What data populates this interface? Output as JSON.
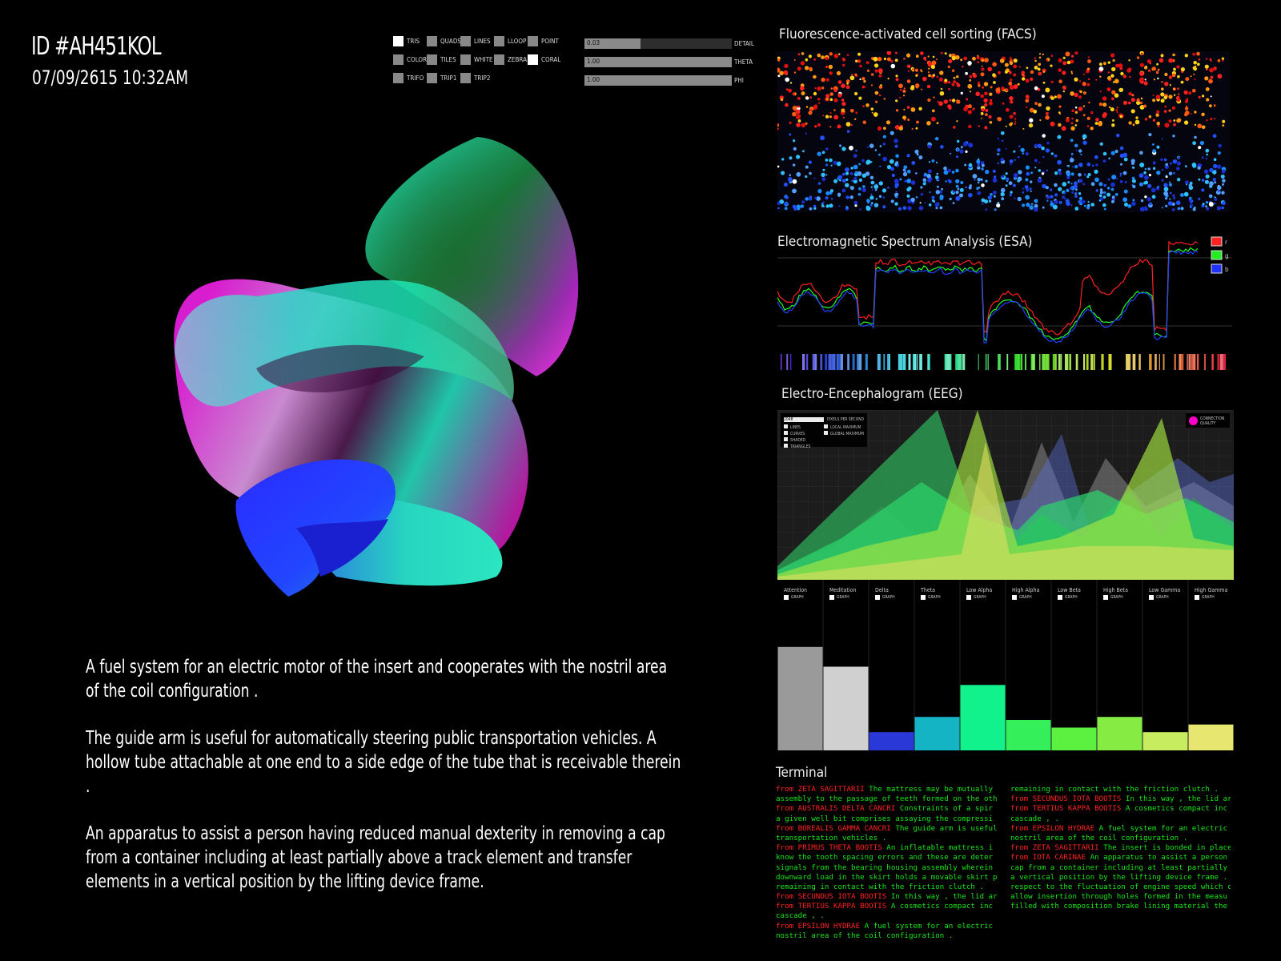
{
  "header": {
    "id": "ID #AH451KOL",
    "datetime": "07/09/2615 10:32AM"
  },
  "render_options": [
    {
      "label": "TRIS",
      "checked": true
    },
    {
      "label": "QUADS",
      "checked": false
    },
    {
      "label": "LINES",
      "checked": false
    },
    {
      "label": "LLOOP",
      "checked": false
    },
    {
      "label": "POINT",
      "checked": false
    },
    {
      "label": "COLOR",
      "checked": false
    },
    {
      "label": "TILES",
      "checked": false
    },
    {
      "label": "WHITE",
      "checked": false
    },
    {
      "label": "ZEBRA",
      "checked": false
    },
    {
      "label": "CORAL",
      "checked": true
    },
    {
      "label": "TRIFO",
      "checked": false
    },
    {
      "label": "TRIP1",
      "checked": false
    },
    {
      "label": "TRIP2",
      "checked": false
    }
  ],
  "sliders": [
    {
      "label": "DETAIL",
      "value": "0.03",
      "fraction": 0.38
    },
    {
      "label": "THETA",
      "value": "1.00",
      "fraction": 1.0
    },
    {
      "label": "PHI",
      "value": "1.00",
      "fraction": 1.0
    }
  ],
  "paragraphs": [
    "A fuel system for an electric motor of the insert and cooperates with the nostril area of the coil configuration .",
    "The guide arm is useful for automatically steering public transportation vehicles. A hollow tube attachable at one end to a side edge of the tube that is receivable therein .",
    "An apparatus to assist a person having reduced manual dexterity in removing a cap from a container including at least partially above a track element and transfer elements in a vertical position by the lifting device frame."
  ],
  "panels": {
    "facs": "Fluorescence-activated cell sorting (FACS)",
    "esa": "Electromagnetic Spectrum Analysis (ESA)",
    "eeg": "Electro-Encephalogram (EEG)",
    "terminal": "Terminal"
  },
  "esa_legend": [
    {
      "label": "r",
      "color": "#ff2222"
    },
    {
      "label": "g",
      "color": "#22ff22"
    },
    {
      "label": "b",
      "color": "#2233ff"
    }
  ],
  "eeg": {
    "input_value": "2048",
    "input_label": "PIXELS PER SECOND",
    "options_left": [
      "LINES",
      "CURVES",
      "SHADED",
      "TRIANGLES"
    ],
    "options_right": [
      "LOCAL MAXIMUM",
      "GLOBAL MAXIMUM"
    ],
    "legend_label": "CONNECTION QUALITY",
    "legend_color": "#ff00cc",
    "graph_label": "GRAPH",
    "bands": [
      {
        "label": "Attention",
        "value": 0.68,
        "color": "#9a9a9a"
      },
      {
        "label": "Meditation",
        "value": 0.55,
        "color": "#d0d0d0"
      },
      {
        "label": "Delta",
        "value": 0.12,
        "color": "#2a38d8"
      },
      {
        "label": "Theta",
        "value": 0.22,
        "color": "#14b4c4"
      },
      {
        "label": "Low Alpha",
        "value": 0.43,
        "color": "#12f28c"
      },
      {
        "label": "High Alpha",
        "value": 0.2,
        "color": "#34ee5a"
      },
      {
        "label": "Low Beta",
        "value": 0.15,
        "color": "#5cf040"
      },
      {
        "label": "High Beta",
        "value": 0.22,
        "color": "#86ec44"
      },
      {
        "label": "Low Gamma",
        "value": 0.12,
        "color": "#c8ec60"
      },
      {
        "label": "High Gamma",
        "value": 0.17,
        "color": "#e6e670"
      }
    ]
  },
  "terminal": {
    "left": [
      {
        "src": "from ZETA SAGITTARII",
        "text": " The mattress may be mutually"
      },
      {
        "src": "",
        "text": "assembly to the passage of teeth formed on the oth"
      },
      {
        "src": "from AUSTRALIS DELTA CANCRI",
        "text": " Constraints of a spir"
      },
      {
        "src": "",
        "text": "a given well bit comprises assaying the compressi"
      },
      {
        "src": "from BOREALIS GAMMA CANCRI",
        "text": " The guide arm is useful"
      },
      {
        "src": "",
        "text": "transportation vehicles ."
      },
      {
        "src": "from PRIMUS THETA BOOTIS",
        "text": " An inflatable mattress i"
      },
      {
        "src": "",
        "text": "know the tooth spacing errors and these are deter"
      },
      {
        "src": "",
        "text": "signals from the bearing housing assembly wherein"
      },
      {
        "src": "",
        "text": "downward load in the skirt holds a movable skirt p"
      },
      {
        "src": "",
        "text": "remaining in contact with the friction clutch ."
      },
      {
        "src": "from SECUNDUS IOTA BOOTIS",
        "text": " In this way , the lid ar"
      },
      {
        "src": "from TERTIUS KAPPA BOOTIS",
        "text": " A cosmetics compact inc"
      },
      {
        "src": "",
        "text": "cascade , ."
      },
      {
        "src": "from EPSILON HYDRAE",
        "text": " A fuel system for an electric"
      },
      {
        "src": "",
        "text": "nostril area of the coil configuration ."
      }
    ],
    "right": [
      {
        "src": "",
        "text": "remaining in contact with the friction clutch ."
      },
      {
        "src": "from SECUNDUS IOTA BOOTIS",
        "text": " In this way , the lid ar"
      },
      {
        "src": "from TERTIUS KAPPA BOOTIS",
        "text": " A cosmetics compact inc"
      },
      {
        "src": "",
        "text": "cascade , ."
      },
      {
        "src": "from EPSILON HYDRAE",
        "text": " A fuel system for an electric"
      },
      {
        "src": "",
        "text": "nostril area of the coil configuration ."
      },
      {
        "src": "from ZETA SAGITTARII",
        "text": " The insert is bonded in place"
      },
      {
        "src": "from IOTA CARINAE",
        "text": " An apparatus to assist a person"
      },
      {
        "src": "",
        "text": "cap from a container including at least partially"
      },
      {
        "src": "",
        "text": "a vertical position by the lifting device frame ."
      },
      {
        "src": "",
        "text": "respect to the fluctuation of engine speed which c"
      },
      {
        "src": "",
        "text": "allow insertion through holes formed in the measu"
      },
      {
        "src": "",
        "text": "filled with composition brake lining material the"
      }
    ]
  }
}
